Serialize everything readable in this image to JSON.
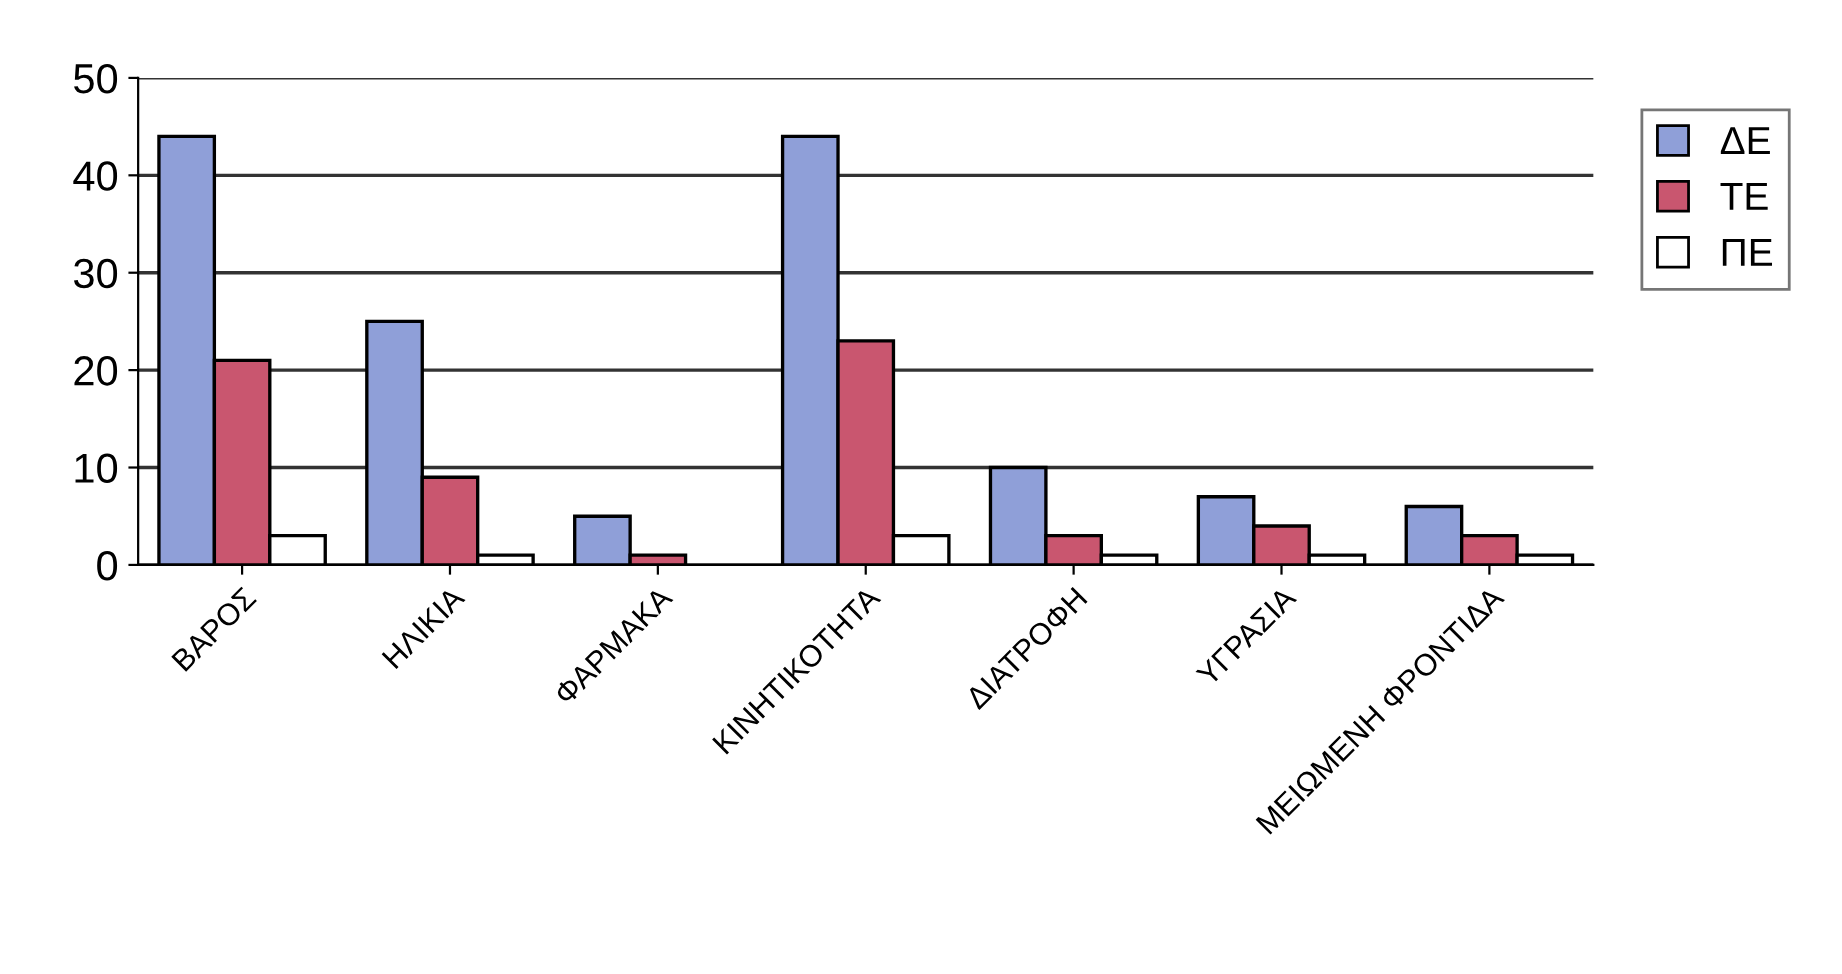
{
  "chart_data": {
    "type": "bar",
    "categories": [
      "ΒΑΡΟΣ",
      "ΗΛΙΚΙΑ",
      "ΦΑΡΜΑΚΑ",
      "ΚΙΝΗΤΙΚΟΤΗΤΑ",
      "ΔΙΑΤΡΟΦΗ",
      "ΥΓΡΑΣΙΑ",
      "ΜΕΙΩΜΕΝΗ ΦΡΟΝΤΙΔΑ"
    ],
    "series": [
      {
        "name": "ΔΕ",
        "color": "#8f9fd8",
        "values": [
          44,
          25,
          5,
          44,
          10,
          7,
          6
        ]
      },
      {
        "name": "ΤΕ",
        "color": "#c9566f",
        "values": [
          21,
          9,
          1,
          23,
          3,
          4,
          3
        ]
      },
      {
        "name": "ΠΕ",
        "color": "#ffffff",
        "values": [
          3,
          1,
          0,
          3,
          1,
          1,
          1
        ]
      }
    ],
    "ylim": [
      0,
      50
    ],
    "yticks": [
      0,
      10,
      20,
      30,
      40,
      50
    ],
    "grid": "y",
    "legend": "right"
  }
}
